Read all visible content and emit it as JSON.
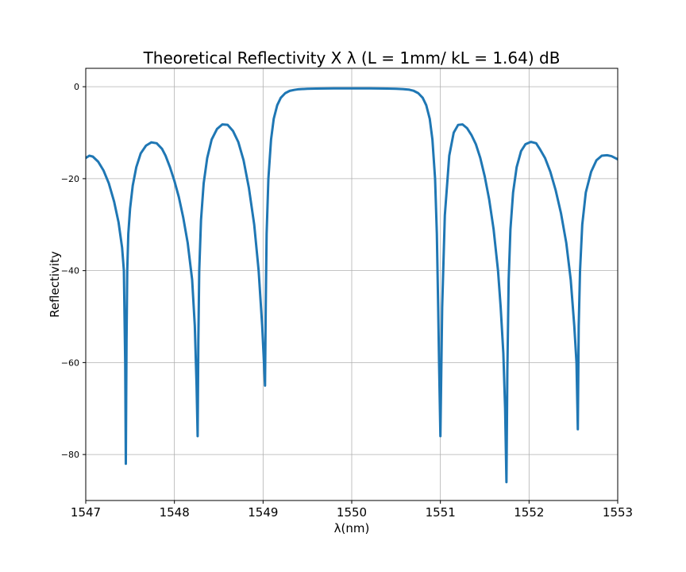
{
  "chart_data": {
    "type": "line",
    "title": "Theoretical Reflectivity X λ (L = 1mm/ kL = 1.64) dB",
    "xlabel": "λ(nm)",
    "ylabel": "Reflectivity",
    "xlim": [
      1547,
      1553
    ],
    "ylim": [
      -90,
      4
    ],
    "x_ticks": [
      1547,
      1548,
      1549,
      1550,
      1551,
      1552,
      1553
    ],
    "x_tick_labels": [
      "1547",
      "1548",
      "1549",
      "1550",
      "1551",
      "1552",
      "1553"
    ],
    "y_ticks": [
      0,
      -20,
      -40,
      -60,
      -80
    ],
    "y_tick_labels": [
      "0",
      "−20",
      "−40",
      "−60",
      "−80"
    ],
    "grid": true,
    "series_color": "#1f77b4",
    "series": [
      {
        "x": [
          1547.0,
          1547.04,
          1547.08,
          1547.14,
          1547.2,
          1547.26,
          1547.32,
          1547.37,
          1547.41,
          1547.43,
          1547.445,
          1547.452,
          1547.46,
          1547.468,
          1547.48,
          1547.5,
          1547.53,
          1547.57,
          1547.62,
          1547.68,
          1547.74,
          1547.8,
          1547.86,
          1547.9,
          1547.95,
          1548.0,
          1548.05,
          1548.1,
          1548.15,
          1548.2,
          1548.23,
          1548.25,
          1548.262,
          1548.27,
          1548.28,
          1548.3,
          1548.33,
          1548.37,
          1548.42,
          1548.48,
          1548.54,
          1548.6,
          1548.66,
          1548.72,
          1548.78,
          1548.84,
          1548.9,
          1548.95,
          1548.99,
          1549.01,
          1549.022,
          1549.03,
          1549.04,
          1549.06,
          1549.09,
          1549.12,
          1549.16,
          1549.2,
          1549.25,
          1549.3,
          1549.35,
          1549.4,
          1549.5,
          1549.6,
          1549.7,
          1549.8,
          1549.9,
          1550.0,
          1550.1,
          1550.2,
          1550.3,
          1550.4,
          1550.5,
          1550.6,
          1550.65,
          1550.7,
          1550.75,
          1550.8,
          1550.84,
          1550.88,
          1550.91,
          1550.94,
          1550.96,
          1550.975,
          1550.985,
          1551.0,
          1551.02,
          1551.05,
          1551.1,
          1551.15,
          1551.2,
          1551.25,
          1551.3,
          1551.35,
          1551.4,
          1551.45,
          1551.5,
          1551.55,
          1551.6,
          1551.65,
          1551.68,
          1551.71,
          1551.73,
          1551.745,
          1551.755,
          1551.77,
          1551.79,
          1551.82,
          1551.86,
          1551.91,
          1551.96,
          1552.02,
          1552.08,
          1552.12,
          1552.18,
          1552.24,
          1552.3,
          1552.36,
          1552.42,
          1552.47,
          1552.51,
          1552.535,
          1552.55,
          1552.56,
          1552.575,
          1552.6,
          1552.64,
          1552.7,
          1552.76,
          1552.82,
          1552.88,
          1552.93,
          1552.97,
          1553.0
        ],
        "y": [
          -15.5,
          -15.0,
          -15.2,
          -16.3,
          -18.2,
          -21.0,
          -25.0,
          -29.5,
          -35.0,
          -40.0,
          -60.0,
          -82.0,
          -55.0,
          -40.0,
          -32.0,
          -26.5,
          -21.5,
          -17.5,
          -14.5,
          -12.8,
          -12.1,
          -12.3,
          -13.5,
          -15.0,
          -17.5,
          -20.5,
          -24.0,
          -28.5,
          -34.0,
          -42.0,
          -52.0,
          -65.0,
          -76.0,
          -55.0,
          -40.0,
          -29.0,
          -21.0,
          -15.5,
          -11.5,
          -9.2,
          -8.2,
          -8.3,
          -9.6,
          -12.0,
          -16.0,
          -22.0,
          -30.0,
          -40.0,
          -52.0,
          -60.0,
          -65.0,
          -48.0,
          -32.0,
          -20.0,
          -11.5,
          -7.0,
          -4.0,
          -2.4,
          -1.4,
          -0.9,
          -0.7,
          -0.55,
          -0.45,
          -0.4,
          -0.38,
          -0.37,
          -0.37,
          -0.36,
          -0.37,
          -0.37,
          -0.38,
          -0.4,
          -0.45,
          -0.55,
          -0.65,
          -0.9,
          -1.4,
          -2.4,
          -4.0,
          -7.0,
          -11.5,
          -20.0,
          -32.0,
          -48.0,
          -60.0,
          -76.0,
          -48.0,
          -28.0,
          -15.0,
          -10.0,
          -8.3,
          -8.2,
          -9.0,
          -10.5,
          -12.5,
          -15.5,
          -19.5,
          -24.5,
          -31.0,
          -40.0,
          -48.0,
          -58.0,
          -70.0,
          -86.0,
          -62.0,
          -42.0,
          -31.0,
          -23.0,
          -17.5,
          -14.0,
          -12.5,
          -12.0,
          -12.3,
          -13.5,
          -15.5,
          -18.5,
          -22.5,
          -27.5,
          -34.0,
          -42.0,
          -52.0,
          -60.0,
          -74.5,
          -52.0,
          -40.0,
          -30.0,
          -23.0,
          -18.5,
          -16.0,
          -15.0,
          -14.9,
          -15.1,
          -15.5,
          -15.8
        ]
      }
    ]
  }
}
